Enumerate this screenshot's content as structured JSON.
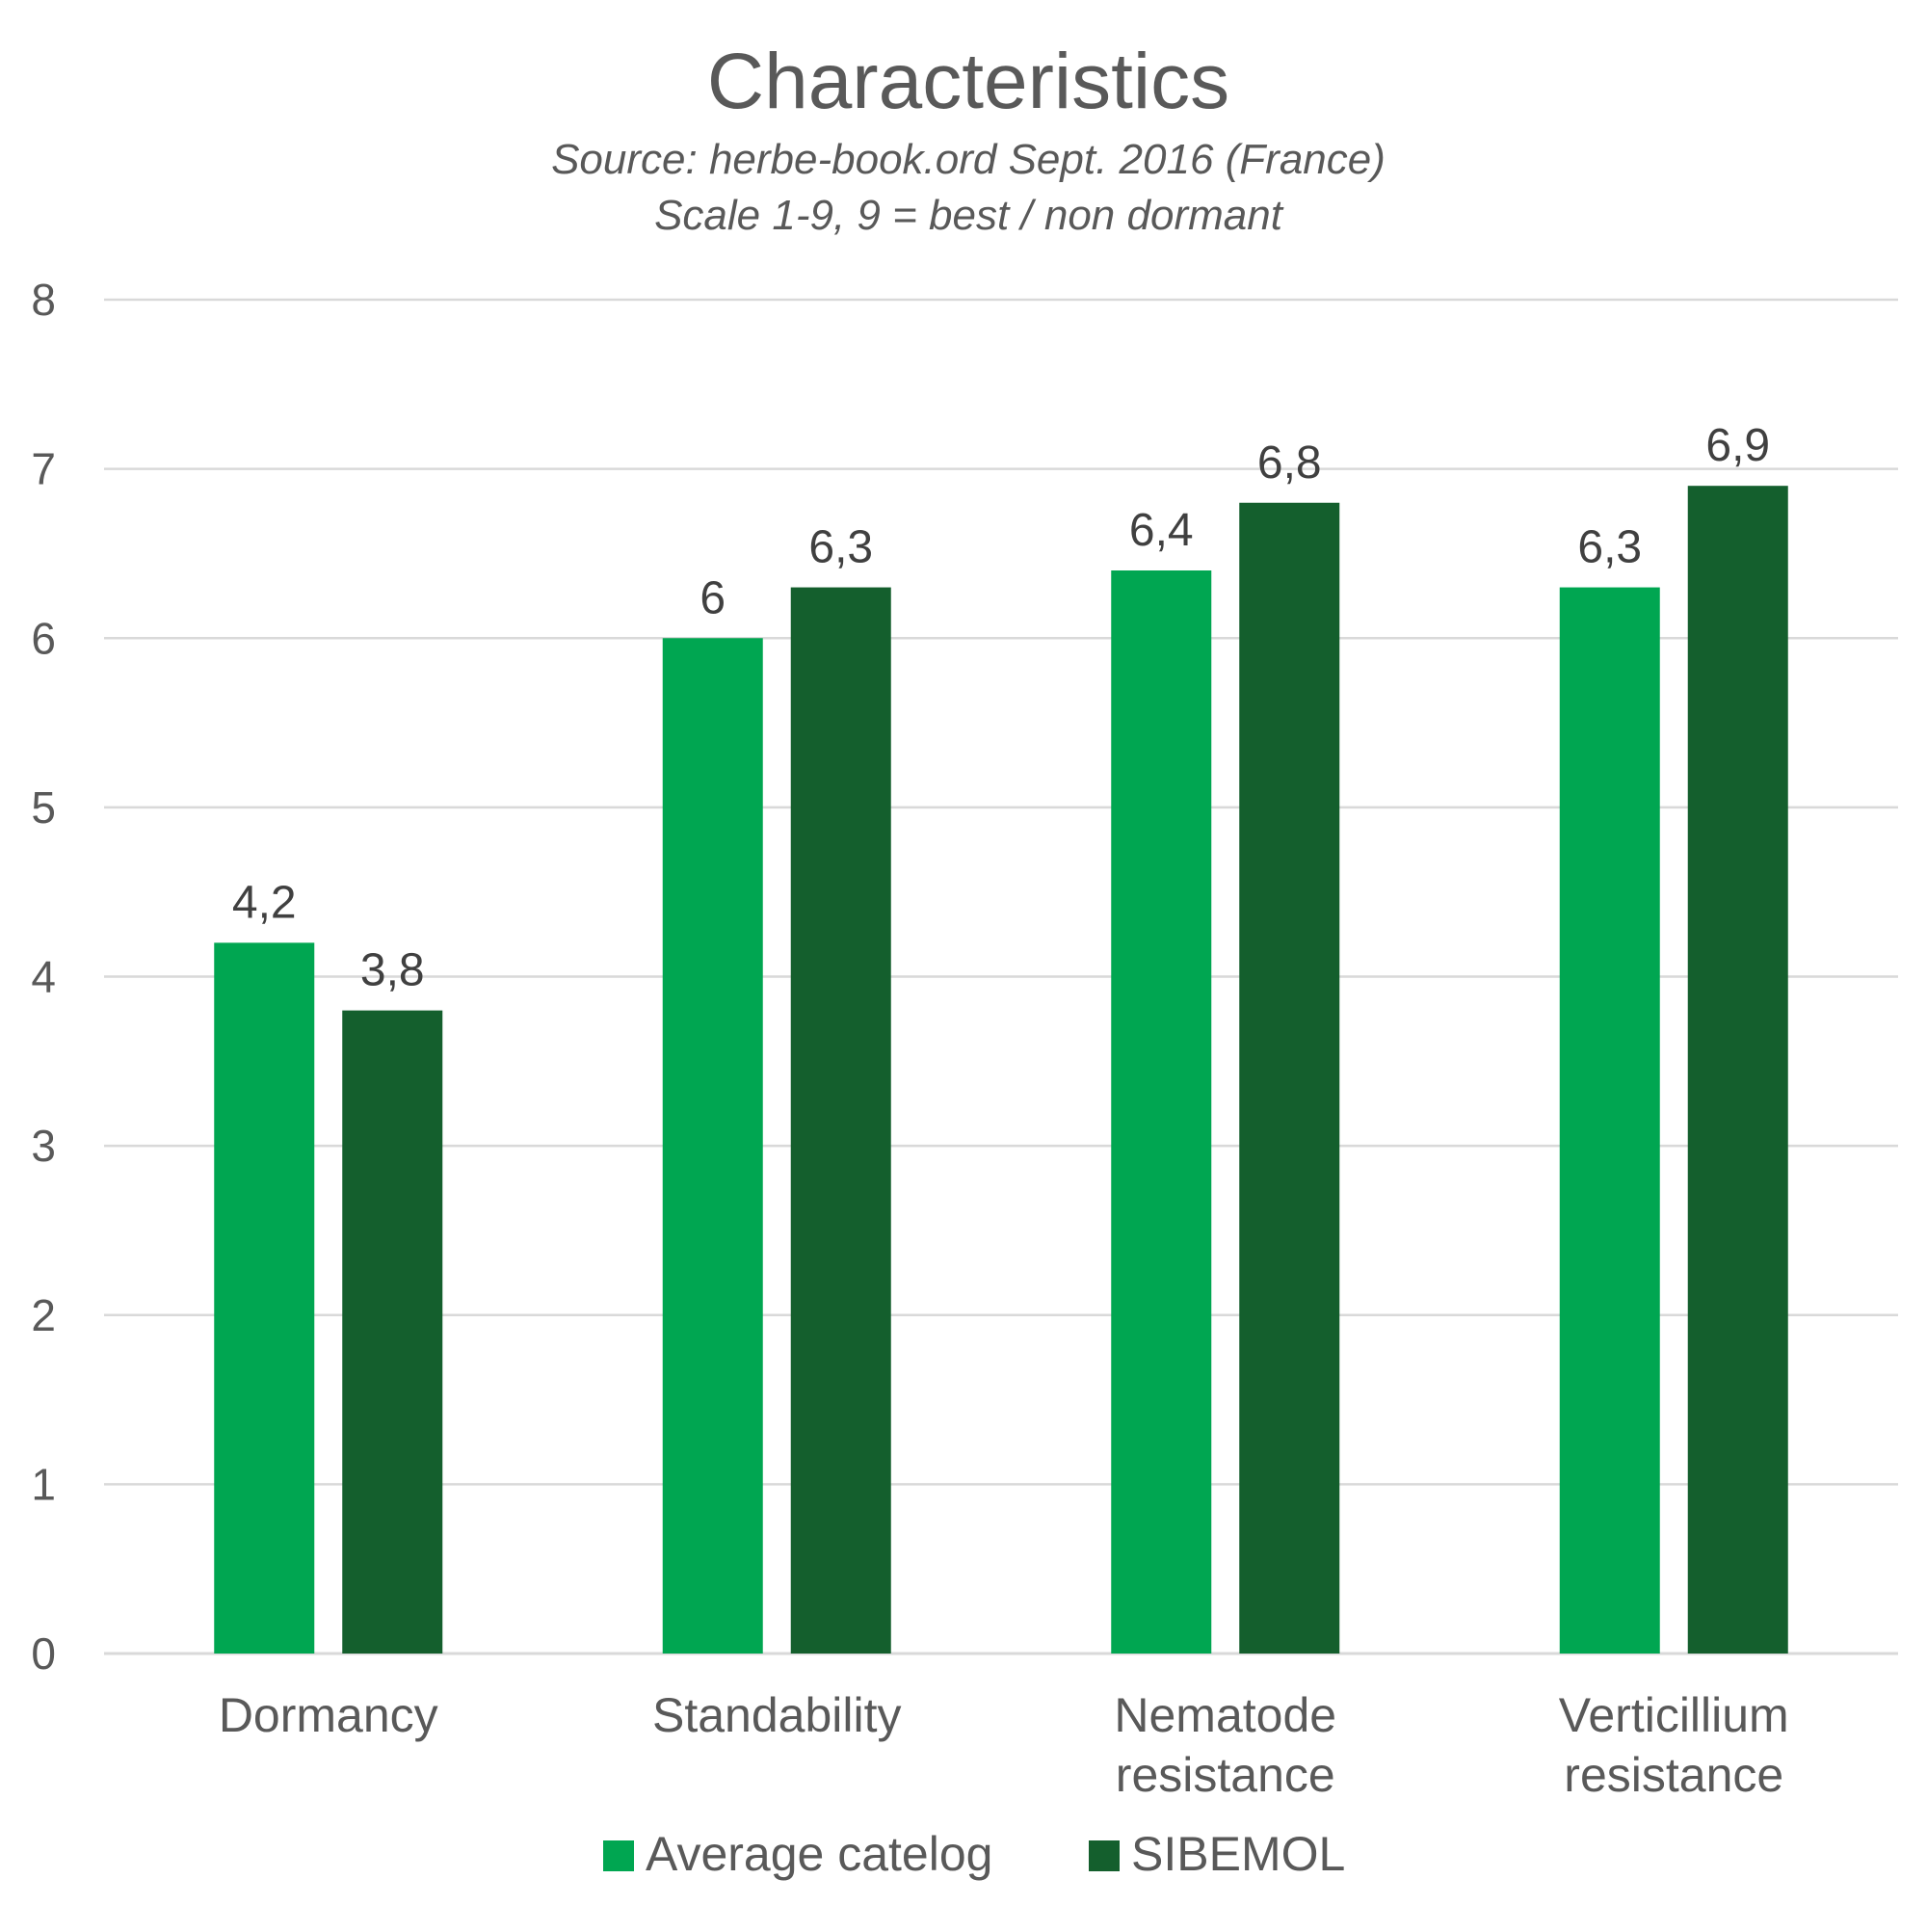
{
  "chart_data": {
    "type": "bar",
    "title": "Characteristics",
    "subtitle_lines": [
      "Source: herbe-book.ord Sept. 2016 (France)",
      "Scale 1-9, 9 = best / non dormant"
    ],
    "categories": [
      [
        "Dormancy"
      ],
      [
        "Standability"
      ],
      [
        "Nematode",
        "resistance"
      ],
      [
        "Verticillium",
        "resistance"
      ]
    ],
    "series": [
      {
        "name": "Average catelog",
        "color": "#00a651",
        "values": [
          4.2,
          6,
          6.4,
          6.3
        ],
        "labels": [
          "4,2",
          "6",
          "6,4",
          "6,3"
        ]
      },
      {
        "name": "SIBEMOL",
        "color": "#145f2d",
        "values": [
          3.8,
          6.3,
          6.8,
          6.9
        ],
        "labels": [
          "3,8",
          "6,3",
          "6,8",
          "6,9"
        ]
      }
    ],
    "ylim": [
      0,
      8
    ],
    "yticks": [
      0,
      1,
      2,
      3,
      4,
      5,
      6,
      7,
      8
    ],
    "grid": true,
    "legend_position": "bottom"
  }
}
